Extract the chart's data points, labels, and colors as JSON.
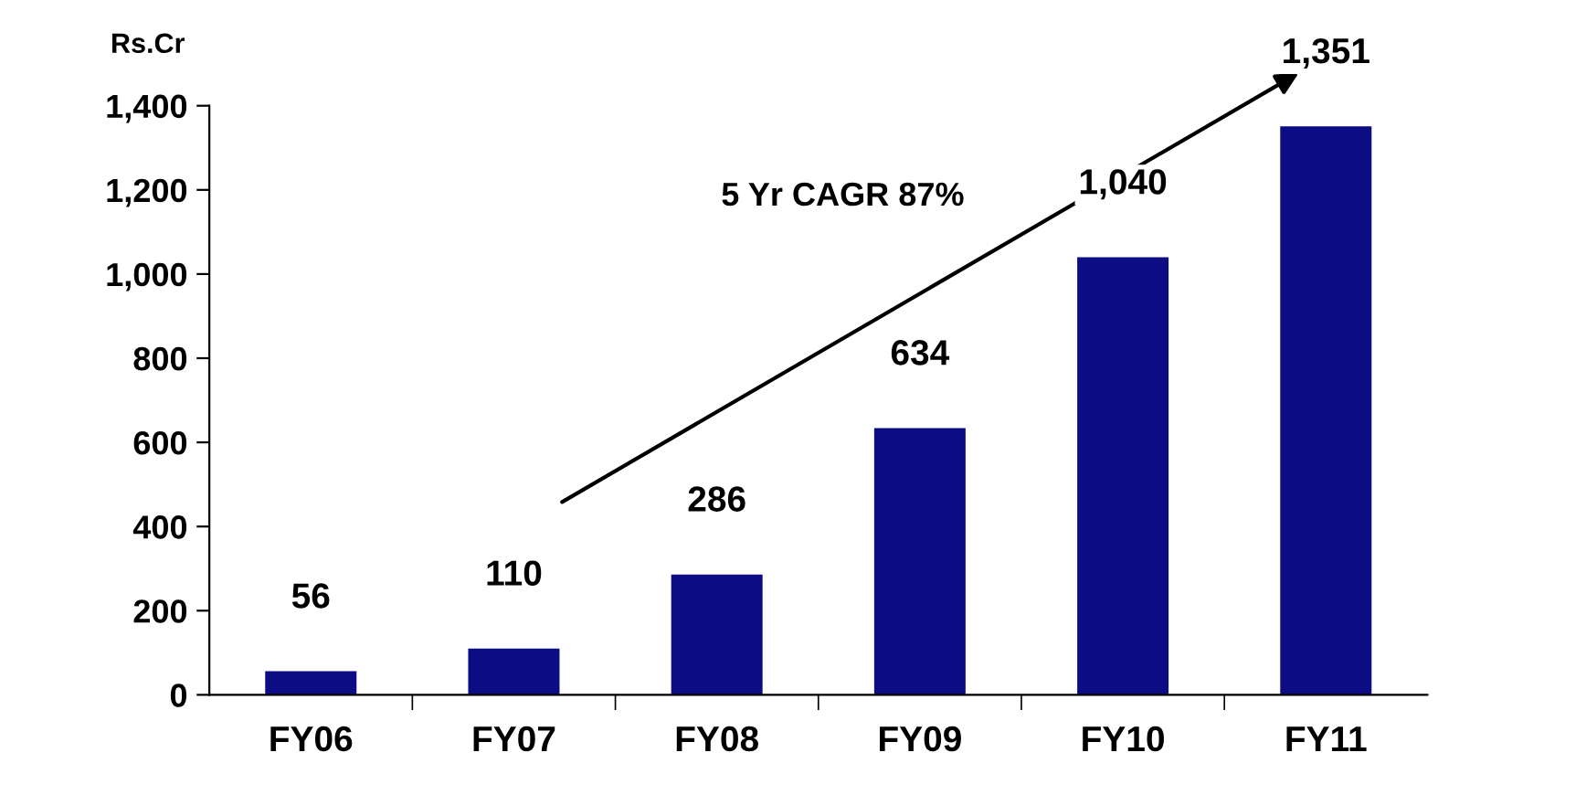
{
  "chart_data": {
    "type": "bar",
    "ylabel": "Rs.Cr",
    "categories": [
      "FY06",
      "FY07",
      "FY08",
      "FY09",
      "FY10",
      "FY11"
    ],
    "values": [
      56,
      110,
      286,
      634,
      1040,
      1351
    ],
    "value_labels": [
      "56",
      "110",
      "286",
      "634",
      "1,040",
      "1,351"
    ],
    "color": "#0c0c84",
    "ylim": [
      0,
      1400
    ],
    "yticks": [
      0,
      200,
      400,
      600,
      800,
      {
        "value": 1000,
        "label": "1,000"
      },
      {
        "value": 1200,
        "label": "1,200"
      },
      {
        "value": 1400,
        "label": "1,400"
      }
    ],
    "annotations": [
      "5 Yr CAGR 87%"
    ],
    "grid": false,
    "legend": false
  }
}
